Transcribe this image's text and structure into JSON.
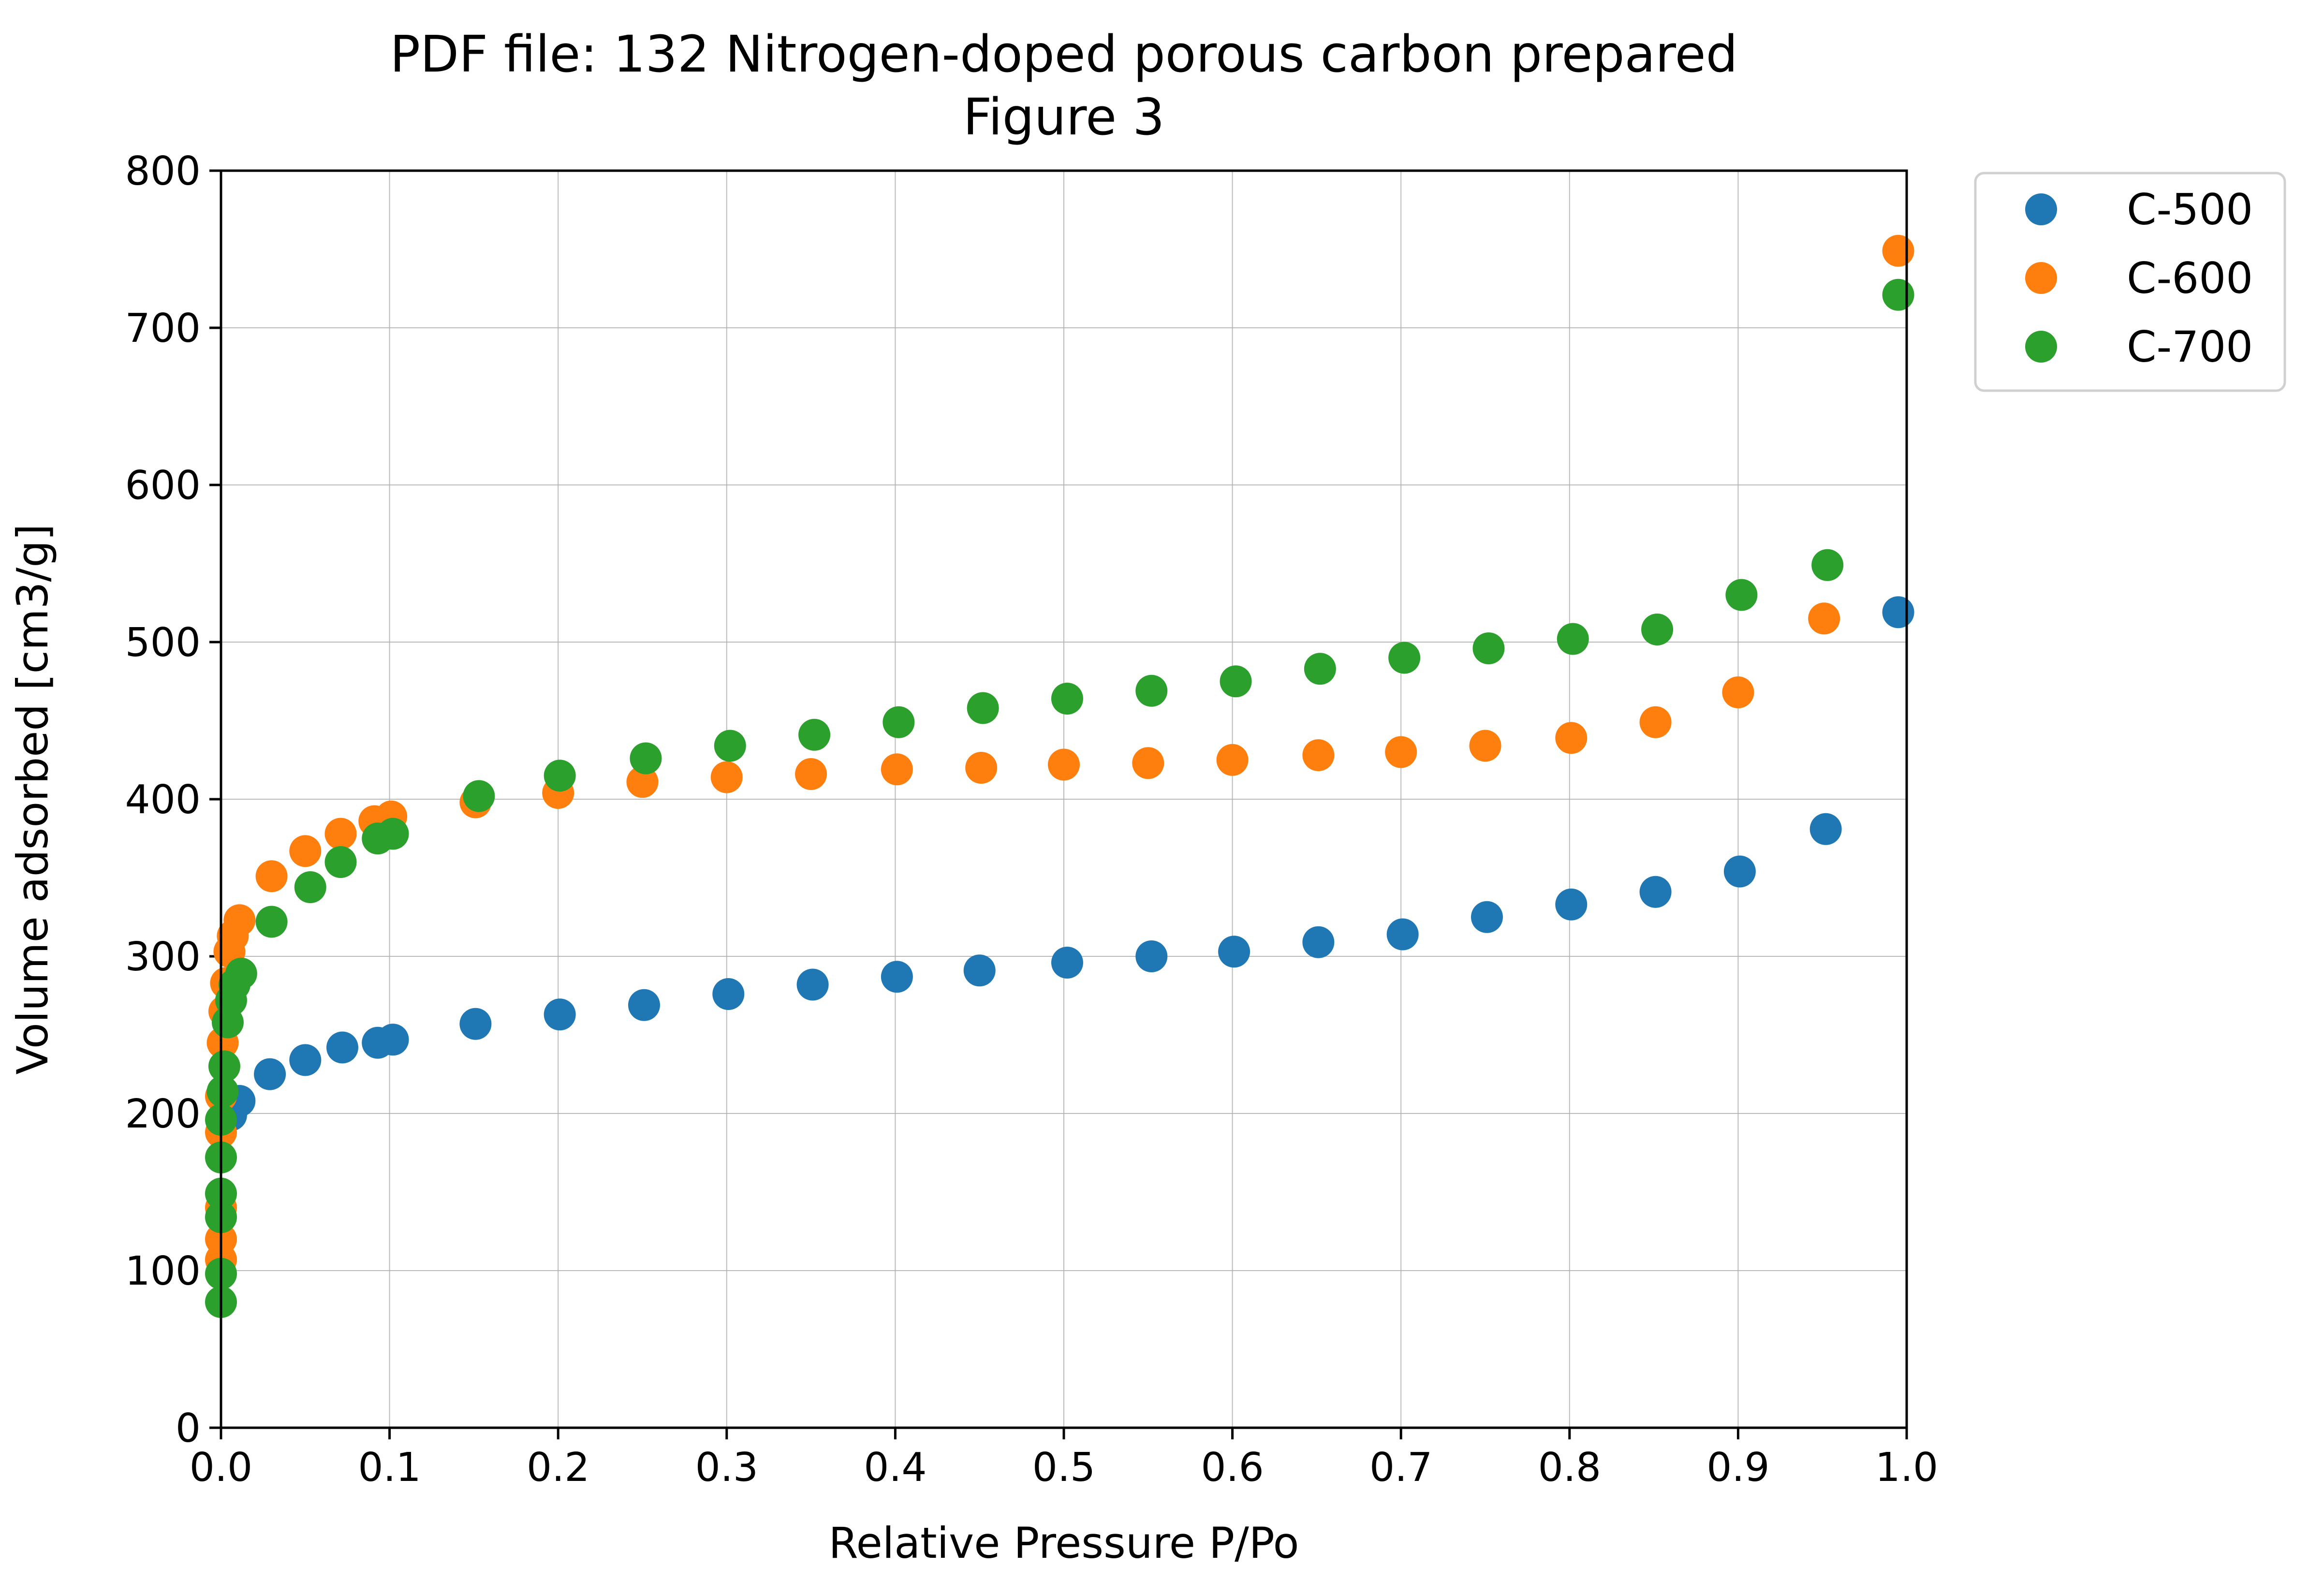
{
  "chart_data": {
    "type": "scatter",
    "title": [
      "PDF file: 132 Nitrogen-doped porous carbon prepared",
      "Figure 3"
    ],
    "xlabel": "Relative Pressure P/Po",
    "ylabel": "Volume adsorbed [cm3/g]",
    "xlim": [
      0.0,
      1.0
    ],
    "ylim": [
      0,
      800
    ],
    "xticks": [
      "0.0",
      "0.1",
      "0.2",
      "0.3",
      "0.4",
      "0.5",
      "0.6",
      "0.7",
      "0.8",
      "0.9",
      "1.0"
    ],
    "yticks": [
      "0",
      "100",
      "200",
      "300",
      "400",
      "500",
      "600",
      "700",
      "800"
    ],
    "grid": true,
    "legend": {
      "placement": "outside top-right"
    },
    "series": [
      {
        "name": "C-500",
        "color": "#1f77b4",
        "points": [
          [
            0.006,
            199
          ],
          [
            0.011,
            208
          ],
          [
            0.029,
            225
          ],
          [
            0.05,
            234
          ],
          [
            0.072,
            242
          ],
          [
            0.093,
            245
          ],
          [
            0.102,
            247
          ],
          [
            0.151,
            257
          ],
          [
            0.201,
            263
          ],
          [
            0.251,
            269
          ],
          [
            0.301,
            276
          ],
          [
            0.351,
            282
          ],
          [
            0.401,
            287
          ],
          [
            0.45,
            291
          ],
          [
            0.502,
            296
          ],
          [
            0.552,
            300
          ],
          [
            0.601,
            303
          ],
          [
            0.651,
            309
          ],
          [
            0.701,
            314
          ],
          [
            0.751,
            325
          ],
          [
            0.801,
            333
          ],
          [
            0.851,
            341
          ],
          [
            0.901,
            354
          ],
          [
            0.952,
            381
          ],
          [
            0.995,
            519
          ]
        ]
      },
      {
        "name": "C-600",
        "color": "#ff7f0e",
        "points": [
          [
            0.0,
            107
          ],
          [
            0.0,
            120
          ],
          [
            0.0,
            140
          ],
          [
            0.0,
            188
          ],
          [
            0.0,
            211
          ],
          [
            0.001,
            245
          ],
          [
            0.002,
            265
          ],
          [
            0.003,
            283
          ],
          [
            0.005,
            303
          ],
          [
            0.007,
            313
          ],
          [
            0.011,
            323
          ],
          [
            0.03,
            351
          ],
          [
            0.05,
            367
          ],
          [
            0.071,
            378
          ],
          [
            0.091,
            386
          ],
          [
            0.101,
            389
          ],
          [
            0.151,
            398
          ],
          [
            0.2,
            404
          ],
          [
            0.25,
            411
          ],
          [
            0.3,
            414
          ],
          [
            0.35,
            416
          ],
          [
            0.401,
            419
          ],
          [
            0.451,
            420
          ],
          [
            0.5,
            422
          ],
          [
            0.55,
            423
          ],
          [
            0.6,
            425
          ],
          [
            0.651,
            428
          ],
          [
            0.7,
            430
          ],
          [
            0.75,
            434
          ],
          [
            0.801,
            439
          ],
          [
            0.851,
            449
          ],
          [
            0.9,
            468
          ],
          [
            0.951,
            515
          ],
          [
            0.995,
            749
          ]
        ]
      },
      {
        "name": "C-700",
        "color": "#2ca02c",
        "points": [
          [
            0.0,
            80
          ],
          [
            0.0,
            98
          ],
          [
            0.0,
            134
          ],
          [
            0.0,
            149
          ],
          [
            0.0,
            172
          ],
          [
            0.0,
            196
          ],
          [
            0.001,
            214
          ],
          [
            0.002,
            230
          ],
          [
            0.004,
            258
          ],
          [
            0.006,
            272
          ],
          [
            0.008,
            282
          ],
          [
            0.012,
            289
          ],
          [
            0.03,
            322
          ],
          [
            0.053,
            344
          ],
          [
            0.071,
            360
          ],
          [
            0.093,
            375
          ],
          [
            0.102,
            378
          ],
          [
            0.153,
            402
          ],
          [
            0.201,
            415
          ],
          [
            0.252,
            426
          ],
          [
            0.302,
            434
          ],
          [
            0.352,
            441
          ],
          [
            0.402,
            449
          ],
          [
            0.452,
            458
          ],
          [
            0.502,
            464
          ],
          [
            0.552,
            469
          ],
          [
            0.602,
            475
          ],
          [
            0.652,
            483
          ],
          [
            0.702,
            490
          ],
          [
            0.752,
            496
          ],
          [
            0.802,
            502
          ],
          [
            0.852,
            508
          ],
          [
            0.902,
            530
          ],
          [
            0.953,
            549
          ],
          [
            0.995,
            721
          ]
        ]
      }
    ]
  }
}
